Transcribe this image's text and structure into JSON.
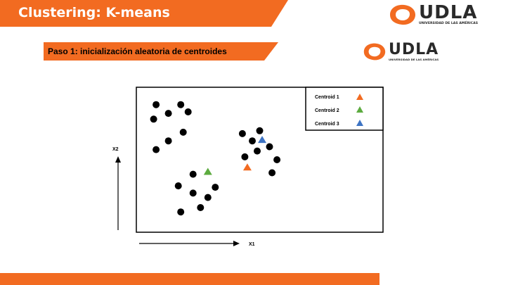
{
  "header": {
    "title": "Clustering: K-means"
  },
  "step": {
    "label": "Paso 1: inicialización aleatoria de centroides"
  },
  "logo": {
    "name": "UDLA",
    "subtitle": "UNIVERSIDAD DE LAS AMÉRICAS"
  },
  "colors": {
    "brand": "#f26b21",
    "centroid1": "#f26b21",
    "centroid2": "#5cab3f",
    "centroid3": "#3e74c4",
    "point": "#000000"
  },
  "chart_data": {
    "type": "scatter",
    "title": "",
    "xlabel": "X1",
    "ylabel": "X2",
    "xlim": [
      0,
      100
    ],
    "ylim": [
      0,
      100
    ],
    "grid": false,
    "legend_position": "top-right",
    "legend": [
      "Centroid 1",
      "Centroid 2",
      "Centroid 3"
    ],
    "series": [
      {
        "name": "points",
        "points": [
          [
            8,
            88
          ],
          [
            13,
            82
          ],
          [
            18,
            88
          ],
          [
            21,
            83
          ],
          [
            7,
            78
          ],
          [
            19,
            69
          ],
          [
            13,
            63
          ],
          [
            8,
            57
          ],
          [
            43,
            68
          ],
          [
            47,
            63
          ],
          [
            44,
            52
          ],
          [
            49,
            56
          ],
          [
            50,
            70
          ],
          [
            57,
            50
          ],
          [
            55,
            41
          ],
          [
            54,
            59
          ],
          [
            23,
            40
          ],
          [
            17,
            32
          ],
          [
            23,
            27
          ],
          [
            29,
            24
          ],
          [
            32,
            31
          ],
          [
            18,
            14
          ],
          [
            26,
            17
          ]
        ]
      },
      {
        "name": "Centroid 1",
        "points": [
          [
            45,
            45
          ]
        ]
      },
      {
        "name": "Centroid 2",
        "points": [
          [
            29,
            42
          ]
        ]
      },
      {
        "name": "Centroid 3",
        "points": [
          [
            51,
            64
          ]
        ]
      }
    ]
  }
}
